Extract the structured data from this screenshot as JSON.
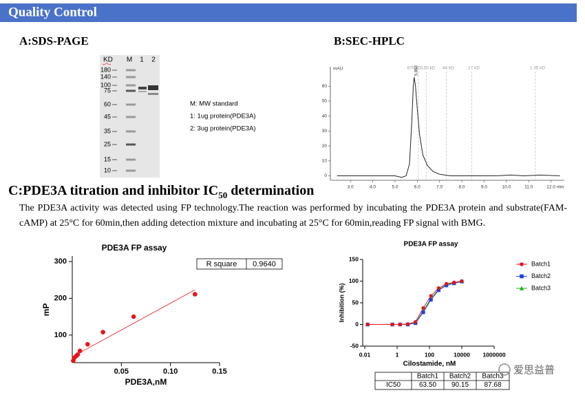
{
  "header": {
    "title": "Quality Control"
  },
  "sections": {
    "a": {
      "title": "A:SDS-PAGE",
      "gel": {
        "unit": "KD",
        "lanes": [
          "M",
          "1",
          "2"
        ],
        "markers": [
          180,
          140,
          100,
          75,
          60,
          45,
          35,
          25,
          15,
          10
        ],
        "legend": [
          "M:  MW standard",
          "1:  1ug protein(PDE3A)",
          "2:  3ug protein(PDE3A)"
        ]
      }
    },
    "b": {
      "title": "B:SEC-HPLC"
    },
    "c": {
      "title": [
        "C:PDE3A titration and inhibitor IC",
        "50",
        " determination"
      ],
      "text": "The PDE3A activity was detected using FP technology.The reaction was performed by incubating the PDE3A protein and substrate(FAM-cAMP) at 25°C for 60min,then adding detection mixture and incubating at 25°C for 60min,reading FP signal with BMG."
    }
  },
  "chart_data": [
    {
      "type": "line",
      "x": [
        2.4,
        4.0,
        5.0,
        5.3,
        5.5,
        5.65,
        5.75,
        5.82,
        5.86,
        5.92,
        6.0,
        6.1,
        6.25,
        6.45,
        6.7,
        7.0,
        7.5,
        8.5,
        9.5,
        10.2,
        10.8,
        11.5,
        12.4
      ],
      "values": [
        0,
        0,
        0,
        -1,
        0,
        8,
        35,
        60,
        66,
        60,
        45,
        28,
        14,
        7,
        3,
        1,
        0,
        0,
        0,
        0.5,
        0,
        0.5,
        0
      ],
      "color": "#222222",
      "xlim": [
        2.1,
        12.6
      ],
      "xticks": [
        {
          "value": 3,
          "label": "3.0"
        },
        {
          "value": 4,
          "label": "4.0"
        },
        {
          "value": 5,
          "label": "5.0"
        },
        {
          "value": 6,
          "label": "6.0"
        },
        {
          "value": 7,
          "label": "7.0"
        },
        {
          "value": 8,
          "label": "8.0"
        },
        {
          "value": 9,
          "label": "9.0"
        },
        {
          "value": 10,
          "label": "10.0"
        },
        {
          "value": 11,
          "label": "11.0"
        },
        {
          "value": 12,
          "label": "12.0"
        }
      ],
      "ylim": [
        -3,
        73
      ],
      "yticks": [
        0,
        10,
        20,
        30,
        40,
        50,
        60
      ],
      "x_unit": "min",
      "y_unit": "mAU",
      "peak_label": "5.860",
      "annotations": [
        {
          "label": "670 kD",
          "x": 6.05
        },
        {
          "label": "150 kD",
          "x": 6.4
        },
        {
          "label": "44 kD",
          "x": 7.3
        },
        {
          "label": "17 kD",
          "x": 8.45
        },
        {
          "label": "1.35 kD",
          "x": 11.3
        }
      ]
    },
    {
      "type": "scatter",
      "title": "PDE3A FP assay",
      "x_label": "PDE3A,nM",
      "y_label": "mP",
      "x": [
        0.001,
        0.002,
        0.004,
        0.0055,
        0.0078,
        0.0156,
        0.0313,
        0.0625,
        0.125
      ],
      "values": [
        30,
        38,
        43,
        47,
        57,
        75,
        108,
        150,
        211
      ],
      "color": "#e8131b",
      "fit": {
        "x": [
          0,
          0.125
        ],
        "values": [
          41,
          223
        ],
        "color": "#f04040"
      },
      "xlim": [
        0,
        0.15
      ],
      "xticks": [
        0.05,
        {
          "value": 0.1,
          "label": "0.10"
        },
        0.15
      ],
      "ylim": [
        25,
        315
      ],
      "yticks": [
        100,
        200,
        300
      ],
      "r_square": {
        "label": "R square",
        "value": "0.9640"
      }
    },
    {
      "type": "line",
      "title": "PDE3A FP assay",
      "x_label": "Cilostamide, nM",
      "y_label": "Inhibition (%)",
      "log_x": true,
      "x": [
        0.015,
        0.508,
        1.52,
        4.57,
        13.7,
        41.2,
        123,
        370,
        1111,
        3333,
        10000
      ],
      "series": [
        {
          "name": "Batch1",
          "color": "#e8131b",
          "marker": "circle",
          "values": [
            0,
            0,
            0,
            1,
            6,
            38,
            66,
            84,
            94,
            97,
            100
          ]
        },
        {
          "name": "Batch2",
          "color": "#1f3fe0",
          "marker": "square",
          "values": [
            0,
            0,
            0,
            0,
            3,
            28,
            57,
            79,
            90,
            95,
            99
          ]
        },
        {
          "name": "Batch3",
          "color": "#22b022",
          "marker": "triangle",
          "values": [
            0,
            0,
            0,
            0,
            4,
            31,
            60,
            81,
            92,
            96,
            100
          ]
        }
      ],
      "xlim": [
        0.01,
        1000000
      ],
      "xticks": [
        0.01,
        1,
        100,
        10000,
        1000000
      ],
      "ylim": [
        -50,
        150
      ],
      "yticks": [
        -50,
        0,
        50,
        100,
        150
      ],
      "table": {
        "header": [
          "Batch1",
          "Batch2",
          "Batch3"
        ],
        "row_label": "IC50",
        "values": [
          "63.50",
          "90.15",
          "87.68"
        ]
      }
    }
  ],
  "watermark": "爱思益普"
}
